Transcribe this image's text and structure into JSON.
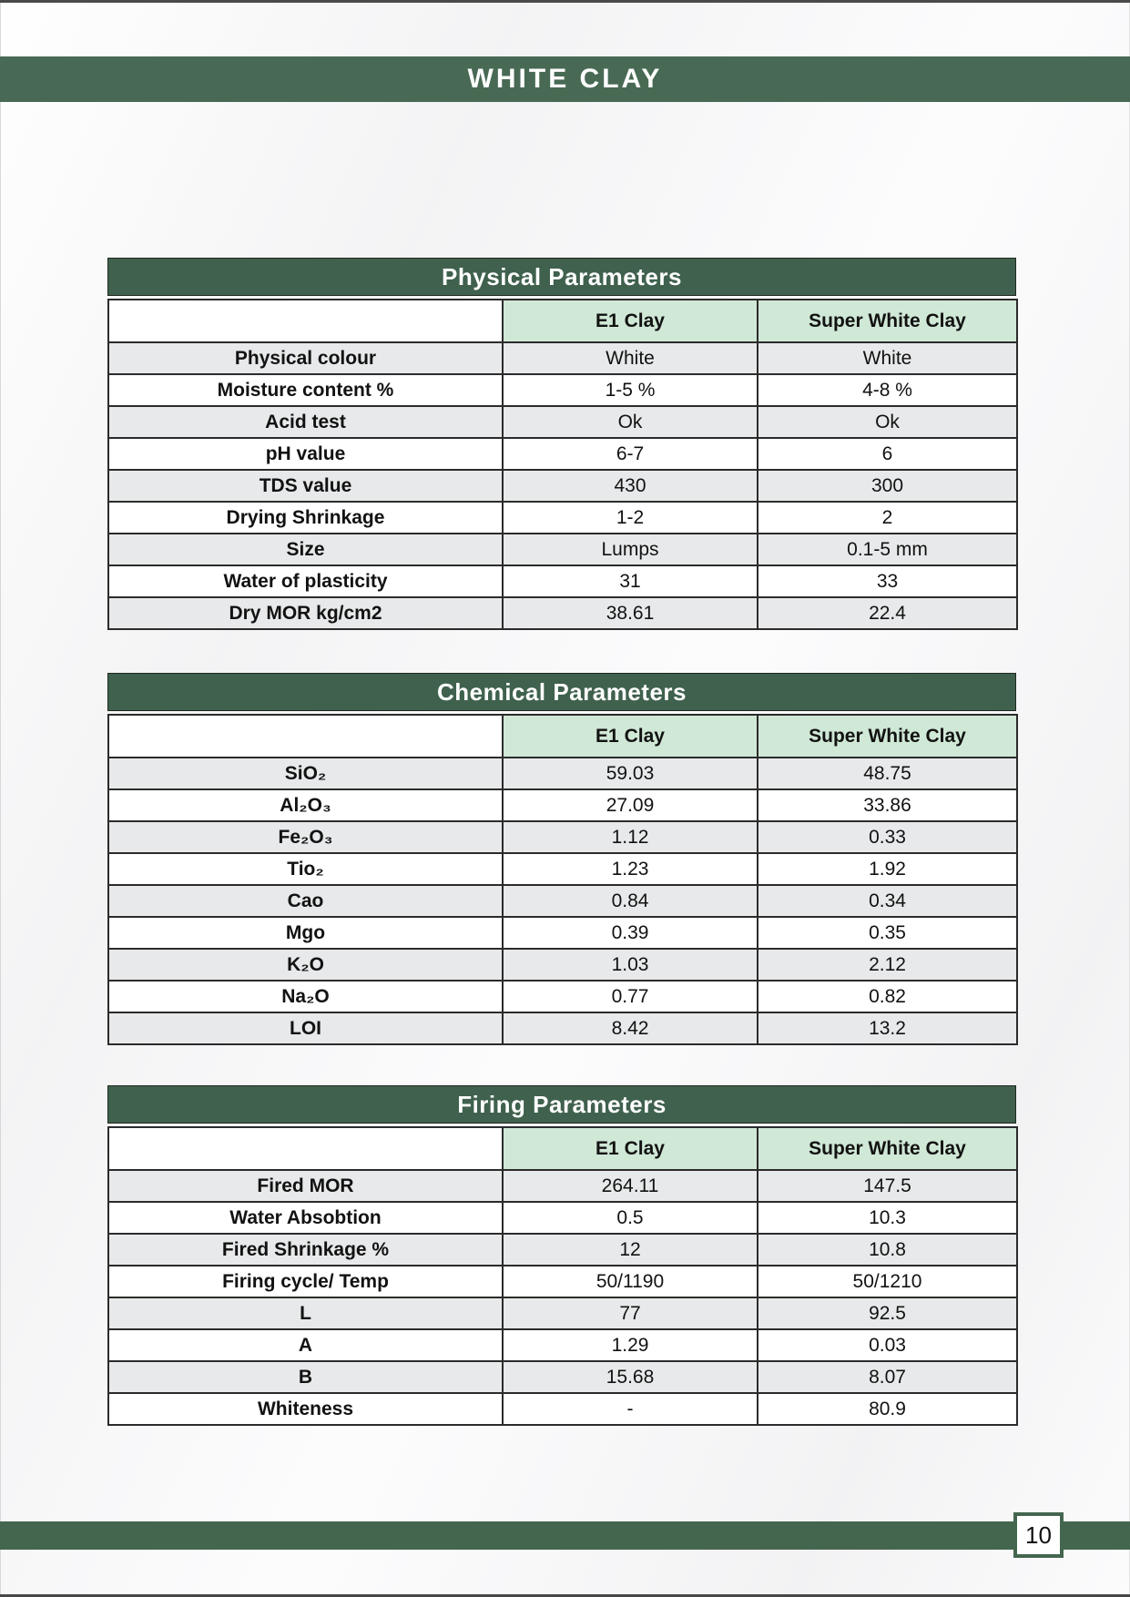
{
  "page": {
    "top_title": "WHITE CLAY",
    "page_number": "10"
  },
  "colors": {
    "band_green": "#486a54",
    "title_green": "#3f614d",
    "footer_green": "#44664f",
    "header_light_green": "#d0e8d6",
    "row_gray": "#e8e9ea",
    "border_dark": "#2b2b2b"
  },
  "tables": [
    {
      "id": "physical",
      "title": "Physical Parameters",
      "columns": [
        "E1 Clay",
        "Super White Clay"
      ],
      "rows": [
        [
          "Physical colour",
          "White",
          "White"
        ],
        [
          "Moisture content %",
          "1-5 %",
          "4-8 %"
        ],
        [
          "Acid test",
          "Ok",
          "Ok"
        ],
        [
          "pH value",
          "6-7",
          "6"
        ],
        [
          "TDS value",
          "430",
          "300"
        ],
        [
          "Drying Shrinkage",
          "1-2",
          "2"
        ],
        [
          "Size",
          "Lumps",
          "0.1-5 mm"
        ],
        [
          "Water of plasticity",
          "31",
          "33"
        ],
        [
          "Dry MOR kg/cm2",
          "38.61",
          "22.4"
        ]
      ]
    },
    {
      "id": "chemical",
      "title": "Chemical Parameters",
      "columns": [
        "E1 Clay",
        "Super White Clay"
      ],
      "rows": [
        [
          "SiO₂",
          "59.03",
          "48.75"
        ],
        [
          "Al₂O₃",
          "27.09",
          "33.86"
        ],
        [
          "Fe₂O₃",
          "1.12",
          "0.33"
        ],
        [
          "Tio₂",
          "1.23",
          "1.92"
        ],
        [
          "Cao",
          "0.84",
          "0.34"
        ],
        [
          "Mgo",
          "0.39",
          "0.35"
        ],
        [
          "K₂O",
          "1.03",
          "2.12"
        ],
        [
          "Na₂O",
          "0.77",
          "0.82"
        ],
        [
          "LOI",
          "8.42",
          "13.2"
        ]
      ]
    },
    {
      "id": "firing",
      "title": "Firing Parameters",
      "columns": [
        "E1 Clay",
        "Super White Clay"
      ],
      "rows": [
        [
          "Fired MOR",
          "264.11",
          "147.5"
        ],
        [
          "Water Absobtion",
          "0.5",
          "10.3"
        ],
        [
          "Fired Shrinkage %",
          "12",
          "10.8"
        ],
        [
          "Firing cycle/ Temp",
          "50/1190",
          "50/1210"
        ],
        [
          "L",
          "77",
          "92.5"
        ],
        [
          "A",
          "1.29",
          "0.03"
        ],
        [
          "B",
          "15.68",
          "8.07"
        ],
        [
          "Whiteness",
          "-",
          "80.9"
        ]
      ]
    }
  ]
}
